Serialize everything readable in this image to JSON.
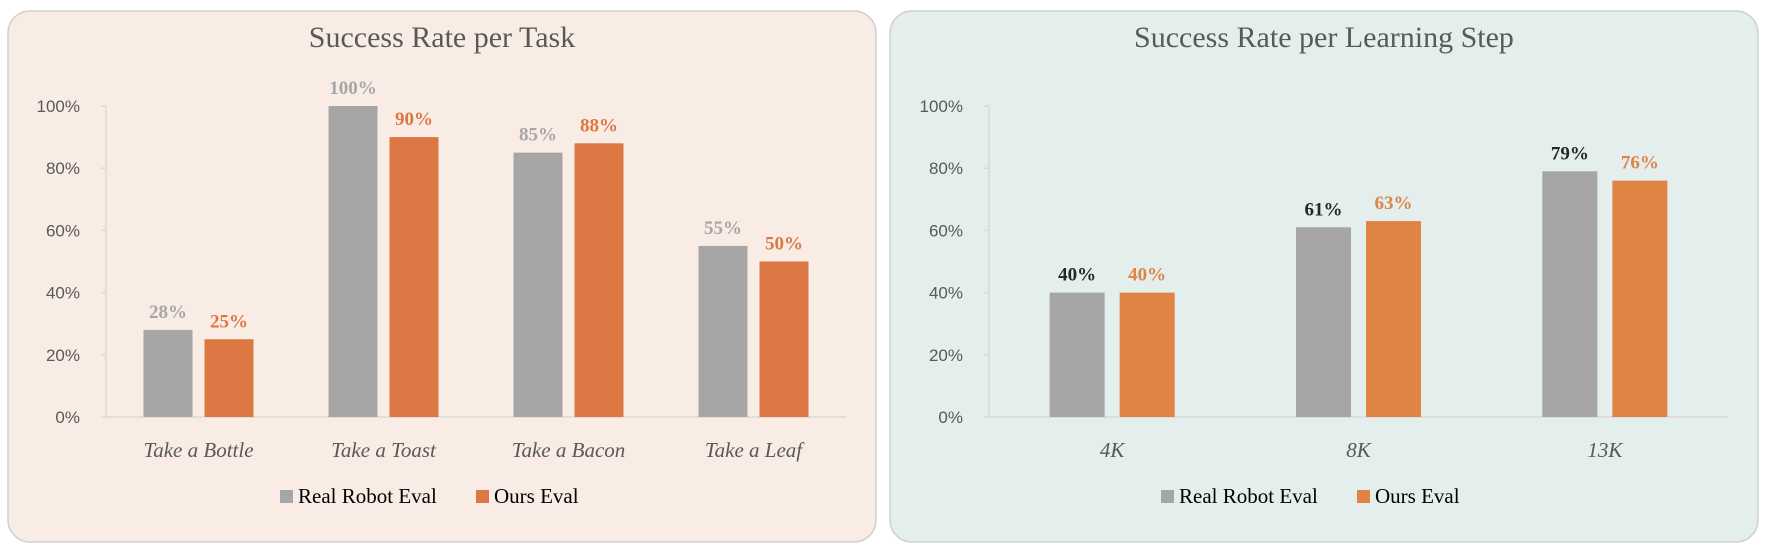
{
  "chart_data": [
    {
      "type": "bar",
      "title": "Success Rate per Task",
      "categories": [
        "Take a Bottle",
        "Take a Toast",
        "Take a Bacon",
        "Take a Leaf"
      ],
      "series": [
        {
          "name": "Real Robot Eval",
          "values": [
            28,
            100,
            85,
            55
          ],
          "labels": [
            "28%",
            "100%",
            "85%",
            "55%"
          ],
          "color": "#a6a6a6",
          "label_color": "#a6a6a6"
        },
        {
          "name": "Ours Eval",
          "values": [
            25,
            90,
            88,
            50
          ],
          "labels": [
            "25%",
            "90%",
            "88%",
            "50%"
          ],
          "color": "#dc7743",
          "label_color": "#dc7743"
        }
      ],
      "yticks": [
        "0%",
        "20%",
        "40%",
        "60%",
        "80%",
        "100%"
      ],
      "ylim": [
        0,
        100
      ],
      "grid": false,
      "legend": "bottom",
      "background": "#f9ece5"
    },
    {
      "type": "bar",
      "title": "Success Rate per Learning Step",
      "categories": [
        "4K",
        "8K",
        "13K"
      ],
      "series": [
        {
          "name": "Real Robot Eval",
          "values": [
            40,
            61,
            79
          ],
          "labels": [
            "40%",
            "61%",
            "79%"
          ],
          "color": "#a6a6a6",
          "label_color": "#262626"
        },
        {
          "name": "Ours Eval",
          "values": [
            40,
            63,
            76
          ],
          "labels": [
            "40%",
            "63%",
            "76%"
          ],
          "color": "#e08446",
          "label_color": "#e08446"
        }
      ],
      "yticks": [
        "0%",
        "20%",
        "40%",
        "60%",
        "80%",
        "100%"
      ],
      "ylim": [
        0,
        100
      ],
      "grid": false,
      "legend": "bottom",
      "background": "#e3eeed"
    }
  ]
}
